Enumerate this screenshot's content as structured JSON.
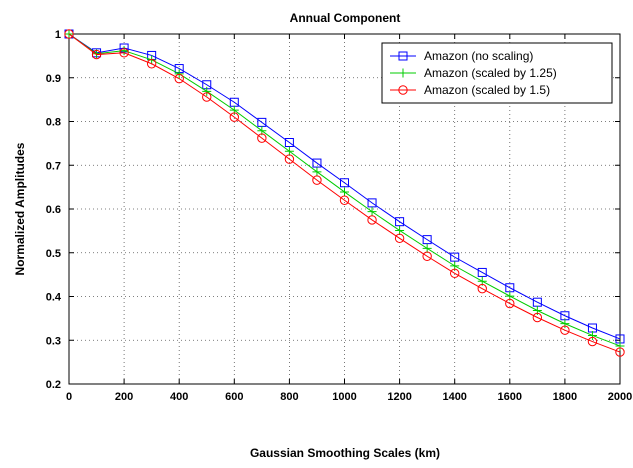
{
  "chart_data": {
    "type": "line",
    "title": "Annual Component",
    "xlabel": "Gaussian Smoothing Scales (km)",
    "ylabel": "Normalized Amplitudes",
    "xlim": [
      0,
      2000
    ],
    "ylim": [
      0.2,
      1.0
    ],
    "xticks": [
      0,
      200,
      400,
      600,
      800,
      1000,
      1200,
      1400,
      1600,
      1800,
      2000
    ],
    "yticks": [
      0.2,
      0.3,
      0.4,
      0.5,
      0.6,
      0.7,
      0.8,
      0.9,
      1
    ],
    "grid": true,
    "legend_position": "top-right",
    "x": [
      0,
      100,
      200,
      300,
      400,
      500,
      600,
      700,
      800,
      900,
      1000,
      1100,
      1200,
      1300,
      1400,
      1500,
      1600,
      1700,
      1800,
      1900,
      2000
    ],
    "series": [
      {
        "name": "Amazon (no scaling)",
        "color": "#0000ff",
        "marker": "square",
        "values": [
          1.0,
          0.957,
          0.968,
          0.951,
          0.921,
          0.884,
          0.844,
          0.798,
          0.752,
          0.705,
          0.66,
          0.614,
          0.571,
          0.53,
          0.49,
          0.455,
          0.42,
          0.387,
          0.356,
          0.328,
          0.303
        ]
      },
      {
        "name": "Amazon (scaled by 1.25)",
        "color": "#00cc00",
        "marker": "plus",
        "values": [
          1.0,
          0.955,
          0.962,
          0.941,
          0.909,
          0.869,
          0.826,
          0.779,
          0.732,
          0.685,
          0.639,
          0.594,
          0.551,
          0.51,
          0.47,
          0.435,
          0.401,
          0.368,
          0.338,
          0.311,
          0.287
        ]
      },
      {
        "name": "Amazon (scaled by 1.5)",
        "color": "#ff0000",
        "marker": "circle",
        "values": [
          1.0,
          0.953,
          0.957,
          0.932,
          0.898,
          0.856,
          0.81,
          0.762,
          0.714,
          0.666,
          0.62,
          0.575,
          0.533,
          0.492,
          0.453,
          0.418,
          0.384,
          0.352,
          0.323,
          0.297,
          0.273
        ]
      }
    ]
  }
}
